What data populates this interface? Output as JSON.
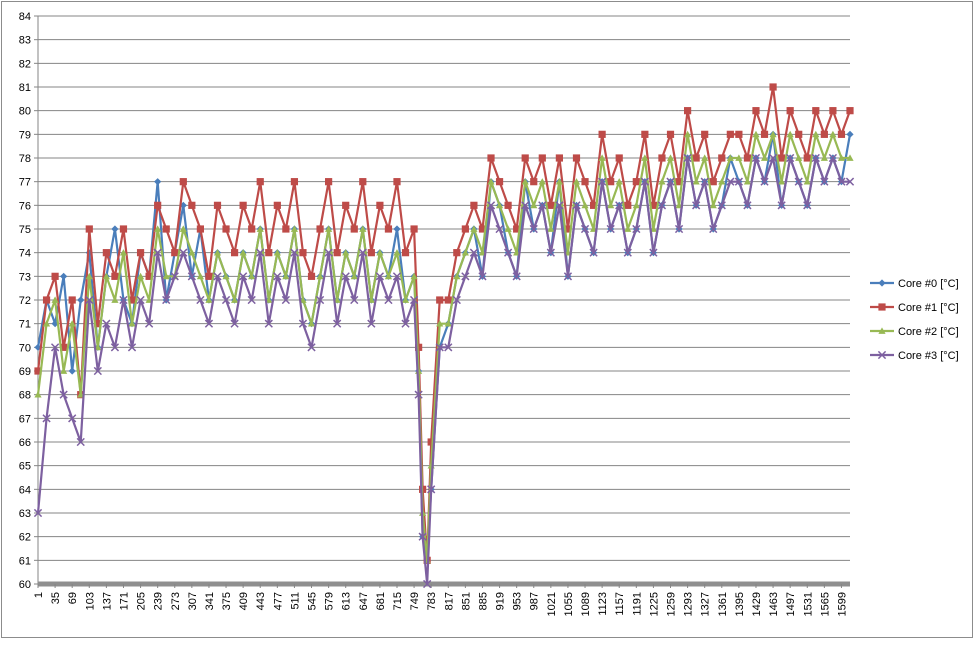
{
  "chart_data": {
    "type": "line",
    "title": "",
    "xlabel": "",
    "ylabel": "",
    "ylim": [
      60,
      84
    ],
    "yticks": [
      60,
      61,
      62,
      63,
      64,
      65,
      66,
      67,
      68,
      69,
      70,
      71,
      72,
      73,
      74,
      75,
      76,
      77,
      78,
      79,
      80,
      81,
      82,
      83,
      84
    ],
    "x_tick_labels": [
      "1",
      "35",
      "69",
      "103",
      "137",
      "171",
      "205",
      "239",
      "273",
      "307",
      "341",
      "375",
      "409",
      "443",
      "477",
      "511",
      "545",
      "579",
      "613",
      "647",
      "681",
      "715",
      "749",
      "783",
      "817",
      "851",
      "885",
      "919",
      "953",
      "987",
      "1021",
      "1055",
      "1089",
      "1123",
      "1157",
      "1191",
      "1225",
      "1259",
      "1293",
      "1327",
      "1361",
      "1395",
      "1429",
      "1463",
      "1497",
      "1531",
      "1565",
      "1599"
    ],
    "gridlines": "horizontal",
    "legend_position": "right",
    "x": [
      1,
      18,
      35,
      52,
      69,
      86,
      103,
      120,
      137,
      154,
      171,
      188,
      205,
      222,
      239,
      256,
      273,
      290,
      307,
      324,
      341,
      358,
      375,
      392,
      409,
      426,
      443,
      460,
      477,
      494,
      511,
      528,
      545,
      562,
      579,
      596,
      613,
      630,
      647,
      664,
      681,
      698,
      715,
      732,
      749,
      758,
      766,
      775,
      783,
      800,
      817,
      834,
      851,
      868,
      885,
      902,
      919,
      936,
      953,
      970,
      987,
      1004,
      1021,
      1038,
      1055,
      1072,
      1089,
      1106,
      1123,
      1140,
      1157,
      1174,
      1191,
      1208,
      1225,
      1242,
      1259,
      1276,
      1293,
      1310,
      1327,
      1344,
      1361,
      1378,
      1395,
      1412,
      1429,
      1446,
      1463,
      1480,
      1497,
      1514,
      1531,
      1548,
      1565,
      1582,
      1599,
      1616
    ],
    "series": [
      {
        "name": "Core #0 [°C]",
        "color": "#4a7ebb",
        "marker": "diamond",
        "values": [
          70,
          72,
          71,
          73,
          69,
          72,
          74,
          70,
          73,
          75,
          72,
          71,
          74,
          73,
          77,
          72,
          74,
          76,
          73,
          75,
          72,
          74,
          73,
          72,
          74,
          73,
          75,
          72,
          74,
          73,
          75,
          72,
          71,
          73,
          75,
          72,
          74,
          73,
          75,
          72,
          74,
          73,
          75,
          72,
          73,
          69,
          62,
          61,
          64,
          70,
          71,
          73,
          74,
          75,
          73,
          77,
          76,
          74,
          73,
          77,
          75,
          76,
          74,
          77,
          73,
          76,
          75,
          74,
          77,
          75,
          76,
          74,
          75,
          77,
          74,
          76,
          77,
          75,
          78,
          76,
          77,
          75,
          76,
          78,
          77,
          76,
          78,
          77,
          79,
          76,
          78,
          77,
          76,
          78,
          77,
          78,
          77,
          79
        ]
      },
      {
        "name": "Core #1 [°C]",
        "color": "#be4b48",
        "marker": "square",
        "values": [
          69,
          72,
          73,
          70,
          72,
          68,
          75,
          71,
          74,
          73,
          75,
          72,
          74,
          73,
          76,
          75,
          74,
          77,
          76,
          75,
          73,
          76,
          75,
          74,
          76,
          75,
          77,
          74,
          76,
          75,
          77,
          74,
          73,
          75,
          77,
          74,
          76,
          75,
          77,
          74,
          76,
          75,
          77,
          74,
          75,
          70,
          64,
          61,
          66,
          72,
          72,
          74,
          75,
          76,
          75,
          78,
          77,
          76,
          75,
          78,
          77,
          78,
          76,
          78,
          75,
          78,
          77,
          76,
          79,
          77,
          78,
          76,
          77,
          79,
          76,
          78,
          79,
          77,
          80,
          78,
          79,
          77,
          78,
          79,
          79,
          78,
          80,
          79,
          81,
          78,
          80,
          79,
          78,
          80,
          79,
          80,
          79,
          80
        ]
      },
      {
        "name": "Core #2 [°C]",
        "color": "#98b954",
        "marker": "triangle",
        "values": [
          68,
          71,
          72,
          69,
          71,
          68,
          73,
          70,
          73,
          72,
          74,
          71,
          73,
          72,
          75,
          73,
          73,
          75,
          74,
          73,
          72,
          74,
          73,
          72,
          74,
          73,
          75,
          72,
          74,
          73,
          75,
          72,
          71,
          73,
          75,
          72,
          74,
          73,
          75,
          72,
          74,
          73,
          74,
          72,
          73,
          69,
          63,
          61,
          65,
          71,
          71,
          73,
          74,
          75,
          74,
          77,
          76,
          75,
          74,
          77,
          76,
          77,
          75,
          77,
          74,
          77,
          76,
          75,
          78,
          76,
          77,
          75,
          76,
          78,
          75,
          77,
          78,
          76,
          79,
          77,
          78,
          76,
          77,
          78,
          78,
          77,
          79,
          78,
          79,
          77,
          79,
          78,
          77,
          79,
          78,
          79,
          78,
          78
        ]
      },
      {
        "name": "Core #3 [°C]",
        "color": "#7d60a0",
        "marker": "x",
        "values": [
          63,
          67,
          70,
          68,
          67,
          66,
          72,
          69,
          71,
          70,
          72,
          70,
          72,
          71,
          74,
          72,
          73,
          74,
          73,
          72,
          71,
          73,
          72,
          71,
          73,
          72,
          74,
          71,
          73,
          72,
          74,
          71,
          70,
          72,
          74,
          71,
          73,
          72,
          74,
          71,
          73,
          72,
          73,
          71,
          72,
          68,
          62,
          60,
          64,
          70,
          70,
          72,
          73,
          74,
          73,
          76,
          75,
          74,
          73,
          76,
          75,
          76,
          74,
          76,
          73,
          76,
          75,
          74,
          77,
          75,
          76,
          74,
          75,
          77,
          74,
          76,
          77,
          75,
          78,
          76,
          77,
          75,
          76,
          77,
          77,
          76,
          78,
          77,
          78,
          76,
          78,
          77,
          76,
          78,
          77,
          78,
          77,
          77
        ]
      }
    ]
  }
}
